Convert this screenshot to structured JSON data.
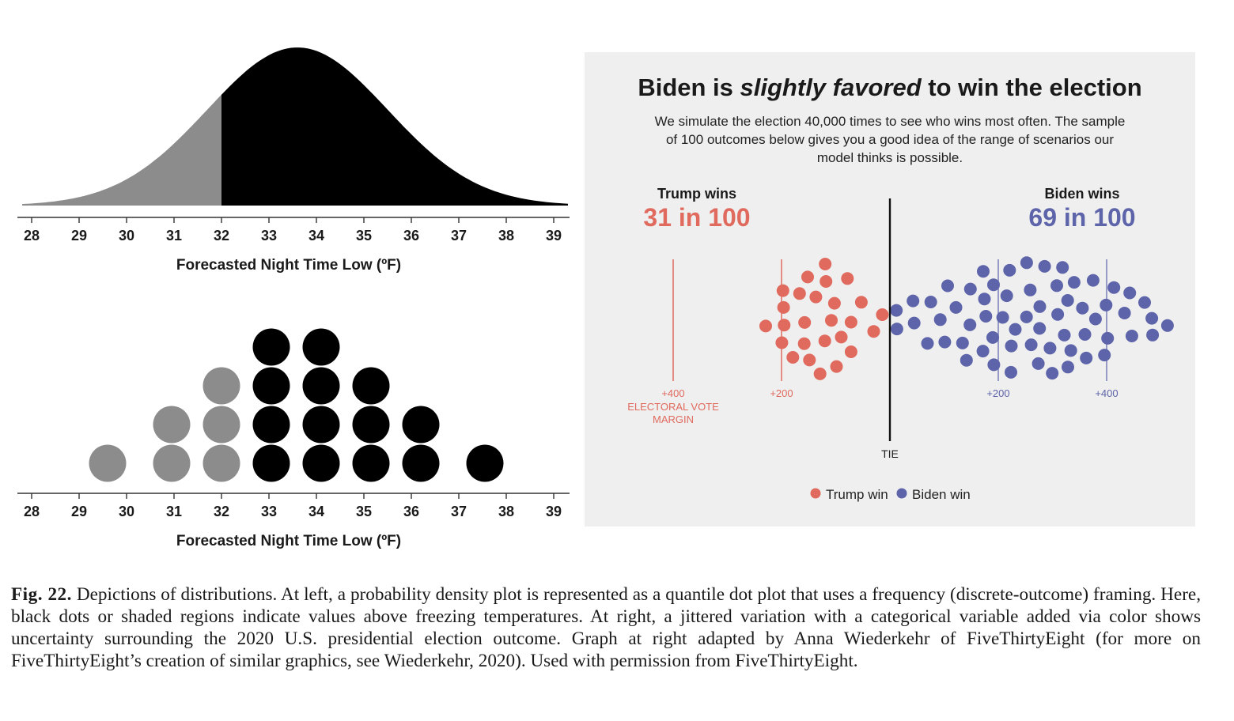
{
  "figure": {
    "caption_label": "Fig. 22.",
    "caption_text": "Depictions of distributions. At left, a probability density plot is represented as a quantile dot plot that uses a frequency (discrete-outcome) framing. Here, black dots or shaded regions indicate values above freezing temperatures. At right, a jittered variation with a categorical variable added via color shows uncertainty surrounding the 2020 U.S. presidential election outcome. Graph at right adapted by Anna Wiederkehr of FiveThirtyEight (for more on FiveThirtyEight’s creation of similar graphics, see Wiederkehr, 2020). Used with permission from FiveThirtyEight."
  },
  "colors": {
    "below_freezing": "#8c8c8c",
    "above_freezing": "#000000",
    "trump": "#e06a5e",
    "biden": "#5e64aa",
    "panel_bg": "#efefef"
  },
  "chart_data": [
    {
      "type": "area",
      "xlabel": "Forecasted Night Time Low (ºF)",
      "ylabel": "",
      "xlim": [
        27.8,
        39.3
      ],
      "x_ticks": [
        "28",
        "29",
        "30",
        "31",
        "32",
        "33",
        "34",
        "35",
        "36",
        "37",
        "38",
        "39"
      ],
      "distribution": {
        "mean": 33.6,
        "sd": 1.9
      },
      "threshold": 32,
      "series": [
        {
          "segment": "below",
          "range": [
            27.8,
            32
          ]
        },
        {
          "segment": "above",
          "range": [
            32,
            39.3
          ]
        }
      ]
    },
    {
      "type": "scatter",
      "xlabel": "Forecasted Night Time Low (ºF)",
      "ylabel": "",
      "xlim": [
        27.8,
        39.3
      ],
      "x_ticks": [
        "28",
        "29",
        "30",
        "31",
        "32",
        "33",
        "34",
        "35",
        "36",
        "37",
        "38",
        "39"
      ],
      "threshold": 32,
      "columns": [
        {
          "x": 29.6,
          "count": 1
        },
        {
          "x": 30.95,
          "count": 2
        },
        {
          "x": 32.0,
          "count": 3
        },
        {
          "x": 33.05,
          "count": 4
        },
        {
          "x": 34.1,
          "count": 4
        },
        {
          "x": 35.15,
          "count": 3
        },
        {
          "x": 36.2,
          "count": 2
        },
        {
          "x": 37.55,
          "count": 1
        }
      ]
    },
    {
      "type": "scatter",
      "title_pre": "Biden is ",
      "title_em": "slightly favored",
      "title_post": " to win the election",
      "subtitle_lines": [
        "We simulate the election 40,000 times to see who wins most often. The sample",
        "of 100 outcomes below gives you a good idea of the range of scenarios our",
        "model thinks is possible."
      ],
      "trump_label": "Trump wins",
      "trump_odds": "31 in 100",
      "biden_label": "Biden wins",
      "biden_odds": "69 in 100",
      "trump_count": 31,
      "biden_count": 69,
      "axis_labels": {
        "trump_400": "+400",
        "trump_200": "+200",
        "biden_200": "+200",
        "biden_400": "+400",
        "tie": "TIE"
      },
      "axis_title_lines": [
        "ELECTORAL VOTE",
        "MARGIN"
      ],
      "legend": {
        "trump": "Trump win",
        "biden": "Biden win"
      }
    }
  ]
}
